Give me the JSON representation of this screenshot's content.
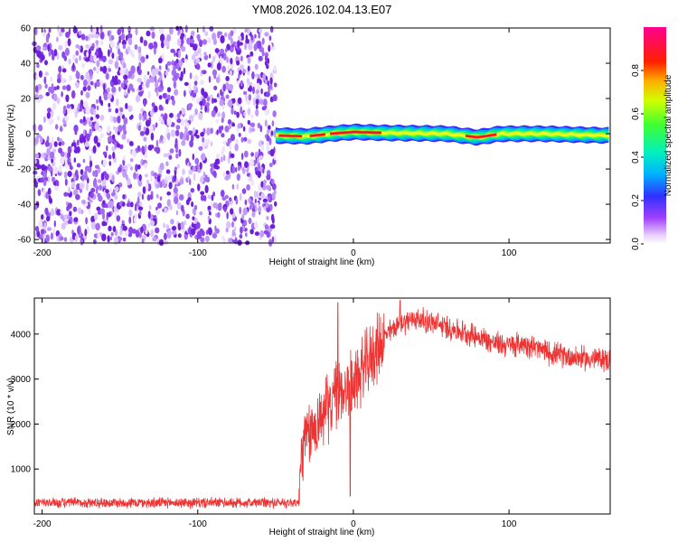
{
  "title": "YM08.2026.102.04.13.E07",
  "colors": {
    "snr_line": "#ee3333",
    "speckle": "#7a2ee0",
    "frame": "#000000"
  },
  "chart_data": [
    {
      "type": "heatmap",
      "name": "spectrogram",
      "xlabel": "Height of straight line (km)",
      "ylabel": "Frequency (Hz)",
      "xlim": [
        -205,
        165
      ],
      "ylim": [
        -62,
        60
      ],
      "xticks": [
        -200,
        -100,
        0,
        100
      ],
      "xtick_labels": [
        "-200",
        "-100",
        "0",
        "100"
      ],
      "yticks": [
        60,
        40,
        20,
        0,
        -20,
        -40,
        -60
      ],
      "ytick_labels": [
        "60",
        "40",
        "20",
        "0",
        "-20",
        "-40",
        "-60"
      ],
      "noise_region_x": [
        -205,
        -50
      ],
      "signal_band": {
        "x_start": -50,
        "x_end": 165,
        "center_freq": [
          [
            -50,
            -1
          ],
          [
            -30,
            -1.5
          ],
          [
            -15,
            0
          ],
          [
            0,
            1
          ],
          [
            20,
            0.5
          ],
          [
            60,
            0
          ],
          [
            80,
            -2
          ],
          [
            95,
            0
          ],
          [
            120,
            0
          ],
          [
            165,
            -1
          ]
        ],
        "strong_segments": [
          [
            -48,
            -33
          ],
          [
            -28,
            -18
          ],
          [
            -15,
            18
          ],
          [
            72,
            92
          ]
        ]
      },
      "colorbar": {
        "label": "Normalized spectral amplitude",
        "range": [
          0.0,
          1.0
        ],
        "ticks": [
          0.0,
          0.2,
          0.4,
          0.6,
          0.8
        ],
        "tick_labels": [
          "0.0",
          "0.2",
          "0.4",
          "0.6",
          "0.8"
        ]
      }
    },
    {
      "type": "line",
      "name": "snr",
      "xlabel": "Height of straight line (km)",
      "ylabel": "SNR (10 * v/v)",
      "xlim": [
        -205,
        165
      ],
      "ylim": [
        0,
        4800
      ],
      "xticks": [
        -200,
        -100,
        0,
        100
      ],
      "xtick_labels": [
        "-200",
        "-100",
        "0",
        "100"
      ],
      "yticks": [
        1000,
        2000,
        3000,
        4000
      ],
      "ytick_labels": [
        "1000",
        "2000",
        "3000",
        "4000"
      ],
      "profile": {
        "x": [
          -205,
          -35,
          -33,
          -20,
          -10,
          0,
          10,
          20,
          30,
          40,
          50,
          60,
          70,
          80,
          90,
          100,
          110,
          120,
          130,
          140,
          150,
          160,
          165
        ],
        "y": [
          250,
          250,
          1500,
          2200,
          2700,
          2900,
          3400,
          3950,
          4250,
          4350,
          4250,
          4150,
          4050,
          3950,
          3800,
          3750,
          3800,
          3650,
          3550,
          3500,
          3450,
          3450,
          3400
        ]
      },
      "spikes": [
        {
          "x": -10,
          "y": 4700
        },
        {
          "x": -2,
          "y": 400
        },
        {
          "x": 30,
          "y": 4750
        }
      ]
    }
  ]
}
